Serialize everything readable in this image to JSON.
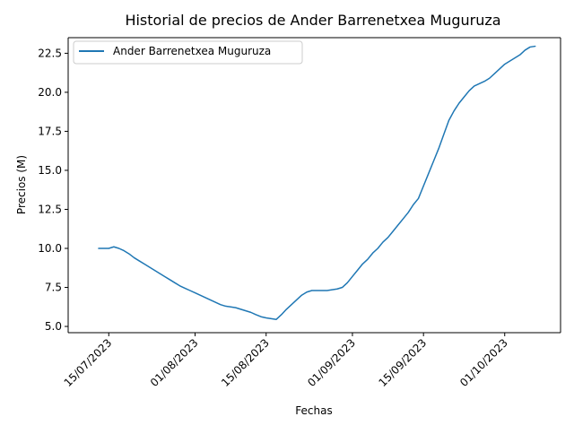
{
  "chart_data": {
    "type": "line",
    "title": "Historial de precios de Ander Barrenetxea Muguruza",
    "xlabel": "Fechas",
    "ylabel": "Precios (M)",
    "x_tick_labels": [
      "15/07/2023",
      "01/08/2023",
      "15/08/2023",
      "01/09/2023",
      "15/09/2023",
      "01/10/2023"
    ],
    "y_tick_labels": [
      "5.0",
      "7.5",
      "10.0",
      "12.5",
      "15.0",
      "17.5",
      "20.0",
      "22.5"
    ],
    "ylim": [
      4.6,
      23.5
    ],
    "xlim": [
      "2023-07-07",
      "2023-10-12"
    ],
    "grid": false,
    "legend_position": "top-left",
    "series": [
      {
        "name": "Ander Barrenetxea Muguruza",
        "color": "#1f77b4",
        "x": [
          "2023-07-13",
          "2023-07-14",
          "2023-07-15",
          "2023-07-16",
          "2023-07-17",
          "2023-07-18",
          "2023-07-19",
          "2023-07-20",
          "2023-07-21",
          "2023-07-22",
          "2023-07-23",
          "2023-07-24",
          "2023-07-25",
          "2023-07-26",
          "2023-07-27",
          "2023-07-28",
          "2023-07-29",
          "2023-07-30",
          "2023-07-31",
          "2023-08-01",
          "2023-08-02",
          "2023-08-03",
          "2023-08-04",
          "2023-08-05",
          "2023-08-06",
          "2023-08-07",
          "2023-08-08",
          "2023-08-09",
          "2023-08-10",
          "2023-08-11",
          "2023-08-12",
          "2023-08-13",
          "2023-08-14",
          "2023-08-15",
          "2023-08-16",
          "2023-08-17",
          "2023-08-18",
          "2023-08-19",
          "2023-08-20",
          "2023-08-21",
          "2023-08-22",
          "2023-08-23",
          "2023-08-24",
          "2023-08-25",
          "2023-08-26",
          "2023-08-27",
          "2023-08-28",
          "2023-08-29",
          "2023-08-30",
          "2023-08-31",
          "2023-09-01",
          "2023-09-02",
          "2023-09-03",
          "2023-09-04",
          "2023-09-05",
          "2023-09-06",
          "2023-09-07",
          "2023-09-08",
          "2023-09-09",
          "2023-09-10",
          "2023-09-11",
          "2023-09-12",
          "2023-09-13",
          "2023-09-14",
          "2023-09-15",
          "2023-09-16",
          "2023-09-17",
          "2023-09-18",
          "2023-09-19",
          "2023-09-20",
          "2023-09-21",
          "2023-09-22",
          "2023-09-23",
          "2023-09-24",
          "2023-09-25",
          "2023-09-26",
          "2023-09-27",
          "2023-09-28",
          "2023-09-29",
          "2023-09-30",
          "2023-10-01",
          "2023-10-02",
          "2023-10-03",
          "2023-10-04",
          "2023-10-05",
          "2023-10-06",
          "2023-10-07"
        ],
        "values": [
          10.0,
          10.0,
          10.0,
          10.1,
          10.0,
          9.85,
          9.65,
          9.4,
          9.2,
          9.0,
          8.8,
          8.6,
          8.4,
          8.2,
          8.0,
          7.8,
          7.6,
          7.45,
          7.3,
          7.15,
          7.0,
          6.85,
          6.7,
          6.55,
          6.4,
          6.3,
          6.25,
          6.2,
          6.1,
          6.0,
          5.9,
          5.75,
          5.62,
          5.55,
          5.5,
          5.45,
          5.75,
          6.1,
          6.4,
          6.7,
          7.0,
          7.2,
          7.3,
          7.3,
          7.3,
          7.3,
          7.35,
          7.4,
          7.5,
          7.8,
          8.2,
          8.6,
          9.0,
          9.3,
          9.7,
          10.0,
          10.4,
          10.7,
          11.1,
          11.5,
          11.9,
          12.3,
          12.8,
          13.2,
          14.0,
          14.8,
          15.6,
          16.4,
          17.3,
          18.2,
          18.8,
          19.3,
          19.7,
          20.1,
          20.4,
          20.55,
          20.7,
          20.9,
          21.2,
          21.5,
          21.8,
          22.0,
          22.2,
          22.4,
          22.7,
          22.9,
          22.95
        ]
      }
    ]
  }
}
